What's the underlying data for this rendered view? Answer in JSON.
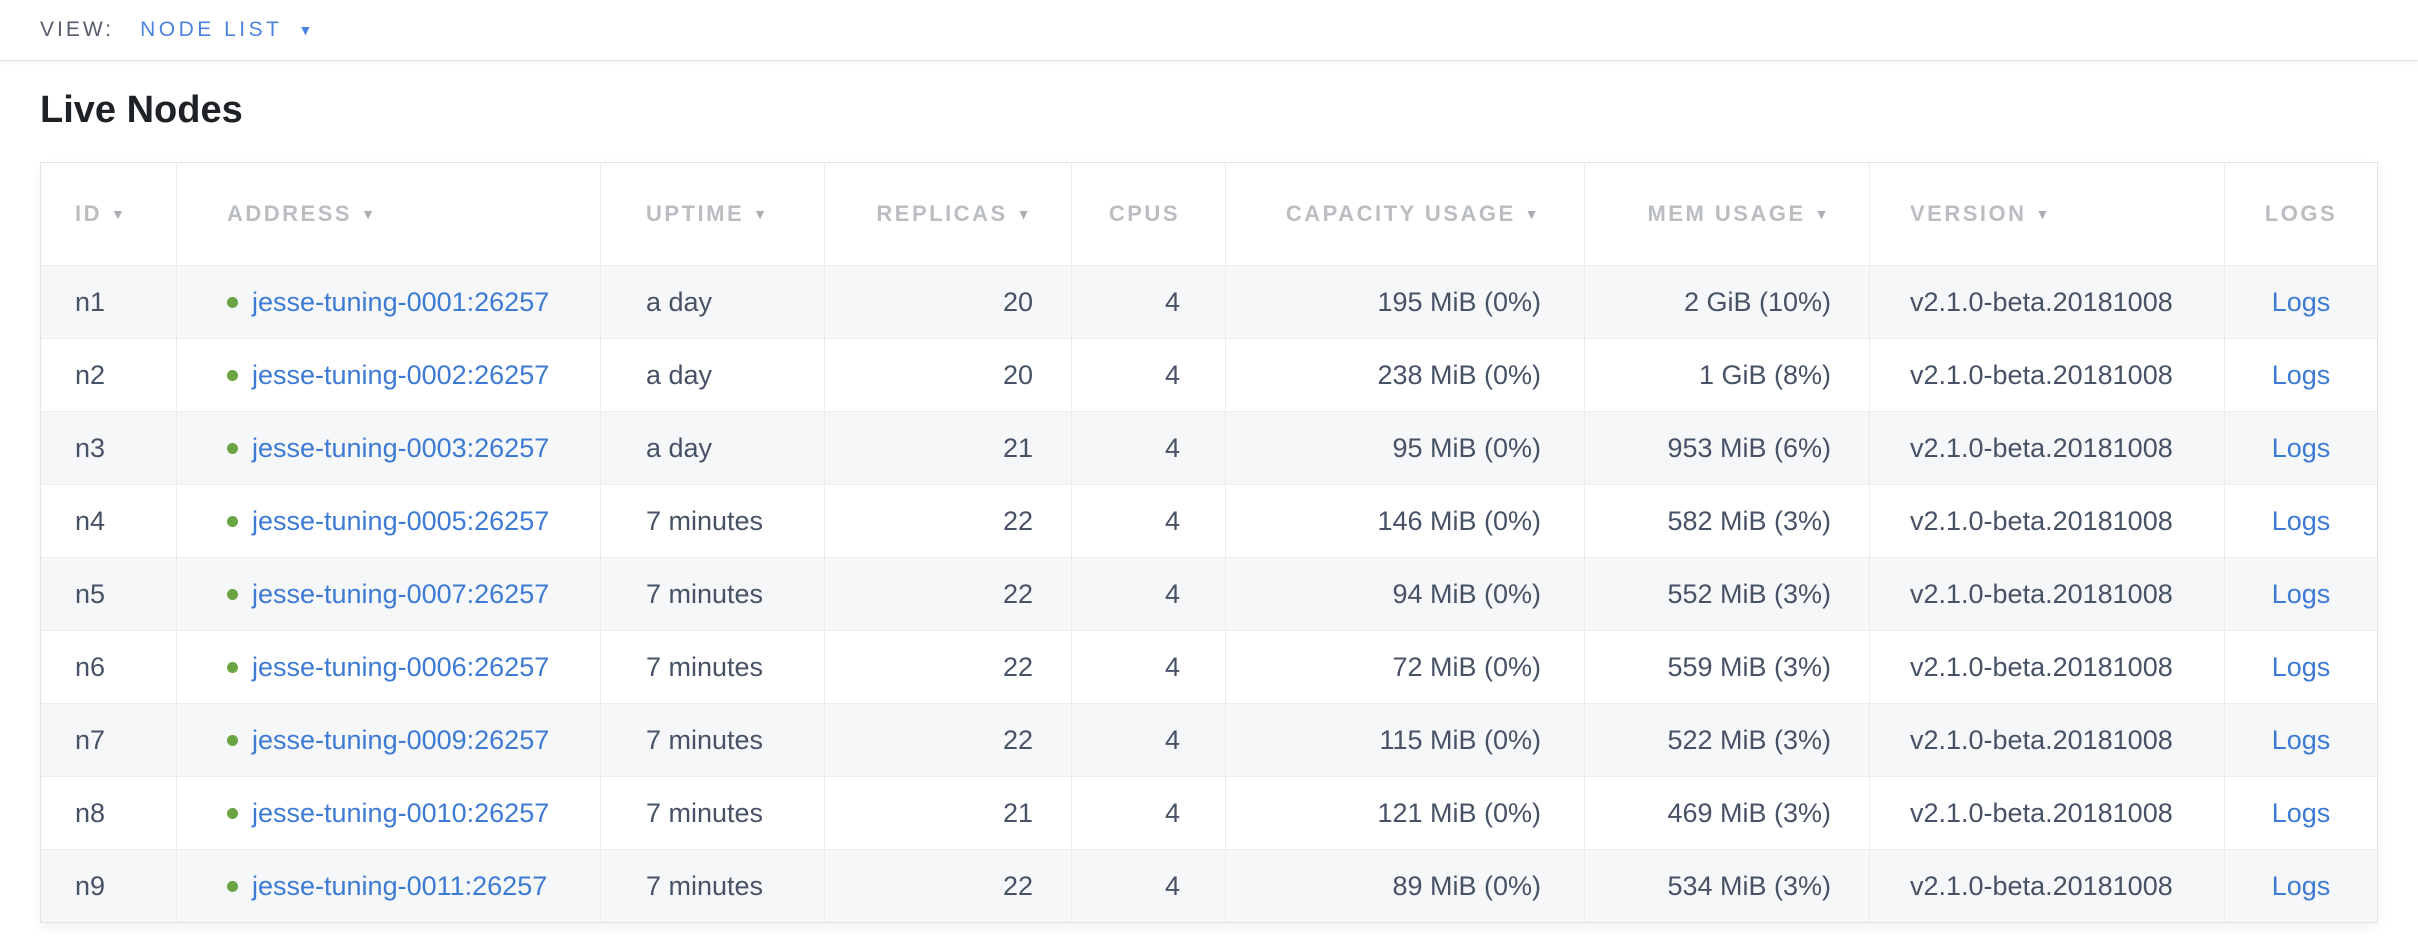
{
  "view_bar": {
    "label": "VIEW:",
    "selected": "NODE LIST",
    "caret_icon": "▼"
  },
  "page": {
    "title": "Live Nodes"
  },
  "icons": {
    "sort_desc": "▼"
  },
  "colors": {
    "link_blue": "#3d7ad4",
    "dropdown_blue": "#4c83df",
    "live_dot_green": "#6ba442",
    "header_gray": "#babdc2",
    "cell_text": "#475266",
    "row_stripe": "#f6f7f8"
  },
  "table": {
    "columns": [
      {
        "key": "id",
        "label": "ID",
        "sortable": true
      },
      {
        "key": "address",
        "label": "ADDRESS",
        "sortable": true
      },
      {
        "key": "uptime",
        "label": "UPTIME",
        "sortable": true
      },
      {
        "key": "replicas",
        "label": "REPLICAS",
        "sortable": true
      },
      {
        "key": "cpus",
        "label": "CPUS",
        "sortable": false
      },
      {
        "key": "capacity",
        "label": "CAPACITY USAGE",
        "sortable": true
      },
      {
        "key": "mem",
        "label": "MEM USAGE",
        "sortable": true
      },
      {
        "key": "version",
        "label": "VERSION",
        "sortable": true
      },
      {
        "key": "logs",
        "label": "LOGS",
        "sortable": false
      }
    ],
    "rows": [
      {
        "id": "n1",
        "address": "jesse-tuning-0001:26257",
        "status": "live",
        "uptime": "a day",
        "replicas": "20",
        "cpus": "4",
        "capacity": "195 MiB (0%)",
        "mem": "2 GiB (10%)",
        "version": "v2.1.0-beta.20181008",
        "logs": "Logs"
      },
      {
        "id": "n2",
        "address": "jesse-tuning-0002:26257",
        "status": "live",
        "uptime": "a day",
        "replicas": "20",
        "cpus": "4",
        "capacity": "238 MiB (0%)",
        "mem": "1 GiB (8%)",
        "version": "v2.1.0-beta.20181008",
        "logs": "Logs"
      },
      {
        "id": "n3",
        "address": "jesse-tuning-0003:26257",
        "status": "live",
        "uptime": "a day",
        "replicas": "21",
        "cpus": "4",
        "capacity": "95 MiB (0%)",
        "mem": "953 MiB (6%)",
        "version": "v2.1.0-beta.20181008",
        "logs": "Logs"
      },
      {
        "id": "n4",
        "address": "jesse-tuning-0005:26257",
        "status": "live",
        "uptime": "7 minutes",
        "replicas": "22",
        "cpus": "4",
        "capacity": "146 MiB (0%)",
        "mem": "582 MiB (3%)",
        "version": "v2.1.0-beta.20181008",
        "logs": "Logs"
      },
      {
        "id": "n5",
        "address": "jesse-tuning-0007:26257",
        "status": "live",
        "uptime": "7 minutes",
        "replicas": "22",
        "cpus": "4",
        "capacity": "94 MiB (0%)",
        "mem": "552 MiB (3%)",
        "version": "v2.1.0-beta.20181008",
        "logs": "Logs"
      },
      {
        "id": "n6",
        "address": "jesse-tuning-0006:26257",
        "status": "live",
        "uptime": "7 minutes",
        "replicas": "22",
        "cpus": "4",
        "capacity": "72 MiB (0%)",
        "mem": "559 MiB (3%)",
        "version": "v2.1.0-beta.20181008",
        "logs": "Logs"
      },
      {
        "id": "n7",
        "address": "jesse-tuning-0009:26257",
        "status": "live",
        "uptime": "7 minutes",
        "replicas": "22",
        "cpus": "4",
        "capacity": "115 MiB (0%)",
        "mem": "522 MiB (3%)",
        "version": "v2.1.0-beta.20181008",
        "logs": "Logs"
      },
      {
        "id": "n8",
        "address": "jesse-tuning-0010:26257",
        "status": "live",
        "uptime": "7 minutes",
        "replicas": "21",
        "cpus": "4",
        "capacity": "121 MiB (0%)",
        "mem": "469 MiB (3%)",
        "version": "v2.1.0-beta.20181008",
        "logs": "Logs"
      },
      {
        "id": "n9",
        "address": "jesse-tuning-0011:26257",
        "status": "live",
        "uptime": "7 minutes",
        "replicas": "22",
        "cpus": "4",
        "capacity": "89 MiB (0%)",
        "mem": "534 MiB (3%)",
        "version": "v2.1.0-beta.20181008",
        "logs": "Logs"
      }
    ]
  }
}
